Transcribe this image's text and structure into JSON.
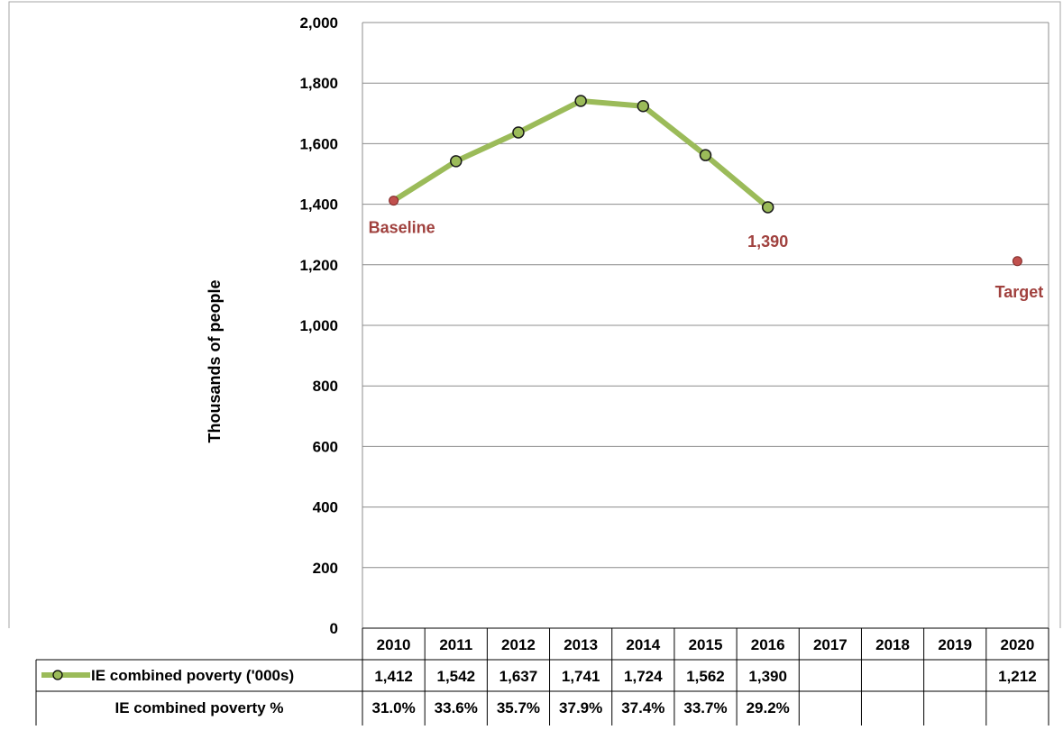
{
  "chart_data": {
    "type": "line",
    "title": "",
    "ylabel": "Thousands of people",
    "xlabel": "",
    "ylim": [
      0,
      2000
    ],
    "yticks": [
      0,
      200,
      400,
      600,
      800,
      1000,
      1200,
      1400,
      1600,
      1800,
      2000
    ],
    "ytick_labels": [
      "0",
      "200",
      "400",
      "600",
      "800",
      "1,000",
      "1,200",
      "1,400",
      "1,600",
      "1,800",
      "2,000"
    ],
    "grid": true,
    "categories": [
      "2010",
      "2011",
      "2012",
      "2013",
      "2014",
      "2015",
      "2016",
      "2017",
      "2018",
      "2019",
      "2020"
    ],
    "series": [
      {
        "name": "IE combined poverty ('000s)",
        "values": [
          1412,
          1542,
          1637,
          1741,
          1724,
          1562,
          1390,
          null,
          null,
          null,
          1212
        ],
        "line_color": "#9bbb59",
        "marker_color": "#9bbb59",
        "highlight_color": "#c0504d",
        "highlight_indices": [
          0,
          10
        ]
      }
    ],
    "annotations": [
      {
        "text": "Baseline",
        "category": "2010",
        "color": "#a0413e"
      },
      {
        "text": "1,390",
        "category": "2016",
        "color": "#a0413e"
      },
      {
        "text": "Target",
        "category": "2020",
        "color": "#a0413e"
      }
    ],
    "data_table": {
      "rows": [
        {
          "label": "IE combined poverty ('000s)",
          "legend_key": true,
          "cells": [
            "1,412",
            "1,542",
            "1,637",
            "1,741",
            "1,724",
            "1,562",
            "1,390",
            "",
            "",
            "",
            "1,212"
          ]
        },
        {
          "label": "IE combined poverty %",
          "legend_key": false,
          "cells": [
            "31.0%",
            "33.6%",
            "35.7%",
            "37.9%",
            "37.4%",
            "33.7%",
            "29.2%",
            "",
            "",
            "",
            ""
          ]
        }
      ]
    }
  }
}
